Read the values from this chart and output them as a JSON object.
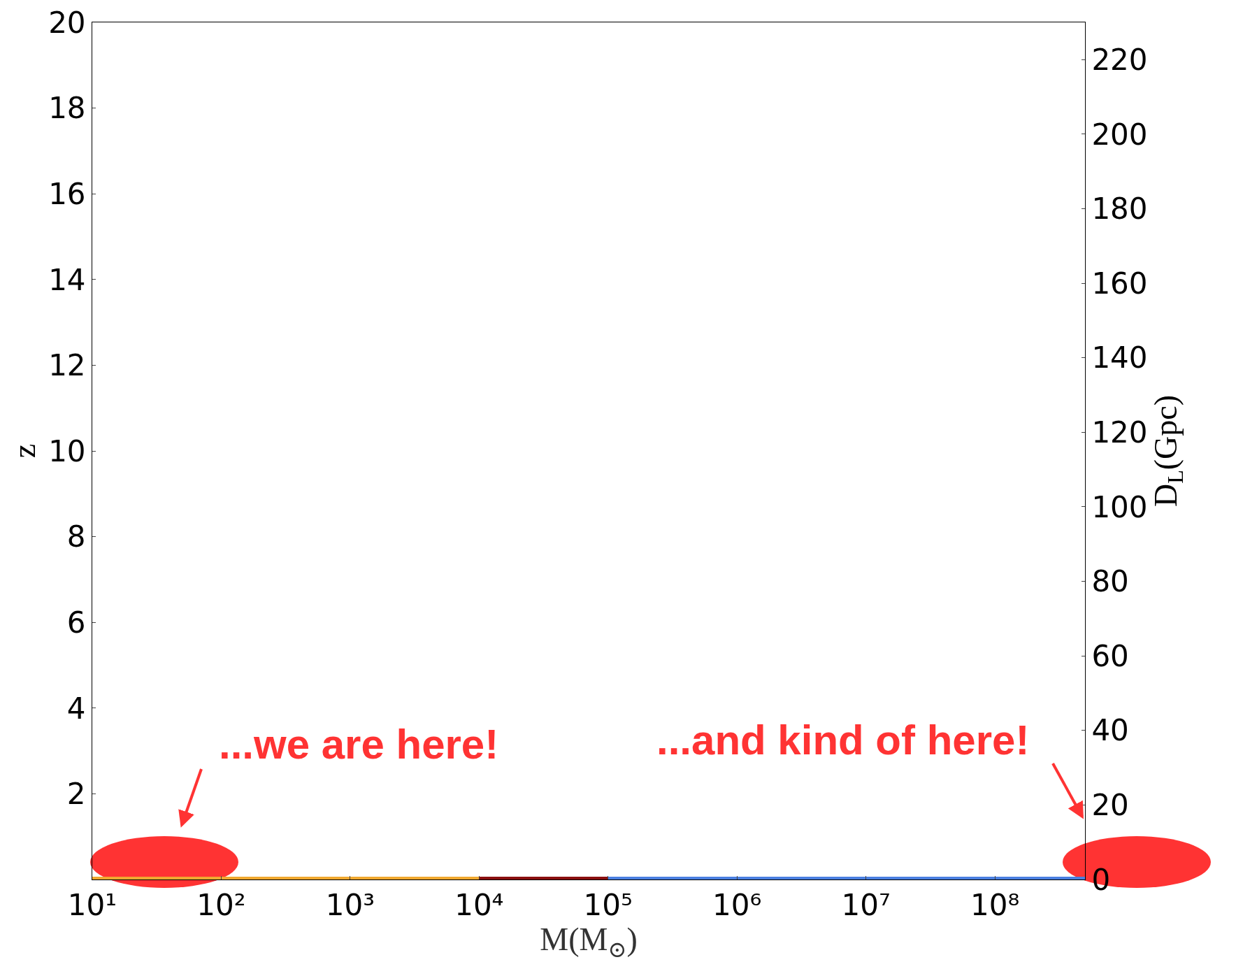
{
  "chart_data": {
    "type": "area",
    "xlabel": "M(M$_{⊙}$)",
    "ylabel": "z",
    "y2label": "D$_{L}$(Gpc)",
    "log": "x",
    "series": [
      {
        "color": "#f0a830",
        "x": [
          10,
          10000
        ],
        "values": [
          0.05,
          0.05
        ]
      },
      {
        "color": "#8b1010",
        "x": [
          10000,
          100000
        ],
        "values": [
          0.05,
          0.05
        ]
      },
      {
        "color": "#4a7fe0",
        "x": [
          100000,
          500000000
        ],
        "values": [
          0.05,
          0.05
        ]
      }
    ],
    "xlim": [
      10,
      500000000
    ],
    "xticks": [
      {
        "value": 10,
        "label": "10¹"
      },
      {
        "value": 100,
        "label": "10²"
      },
      {
        "value": 1000,
        "label": "10³"
      },
      {
        "value": 10000,
        "label": "10⁴"
      },
      {
        "value": 100000,
        "label": "10⁵"
      },
      {
        "value": 1000000,
        "label": "10⁶"
      },
      {
        "value": 10000000,
        "label": "10⁷"
      },
      {
        "value": 100000000,
        "label": "10⁸"
      }
    ],
    "ylim": [
      0,
      20
    ],
    "yticks": [
      2,
      4,
      6,
      8,
      10,
      12,
      14,
      16,
      18,
      20
    ],
    "y2lim": [
      0,
      230
    ],
    "y2ticks": [
      0,
      20,
      40,
      60,
      80,
      100,
      120,
      140,
      160,
      180,
      200,
      220
    ],
    "annotations": [
      "...we are here!",
      "...and kind of here!"
    ],
    "grid": false
  }
}
